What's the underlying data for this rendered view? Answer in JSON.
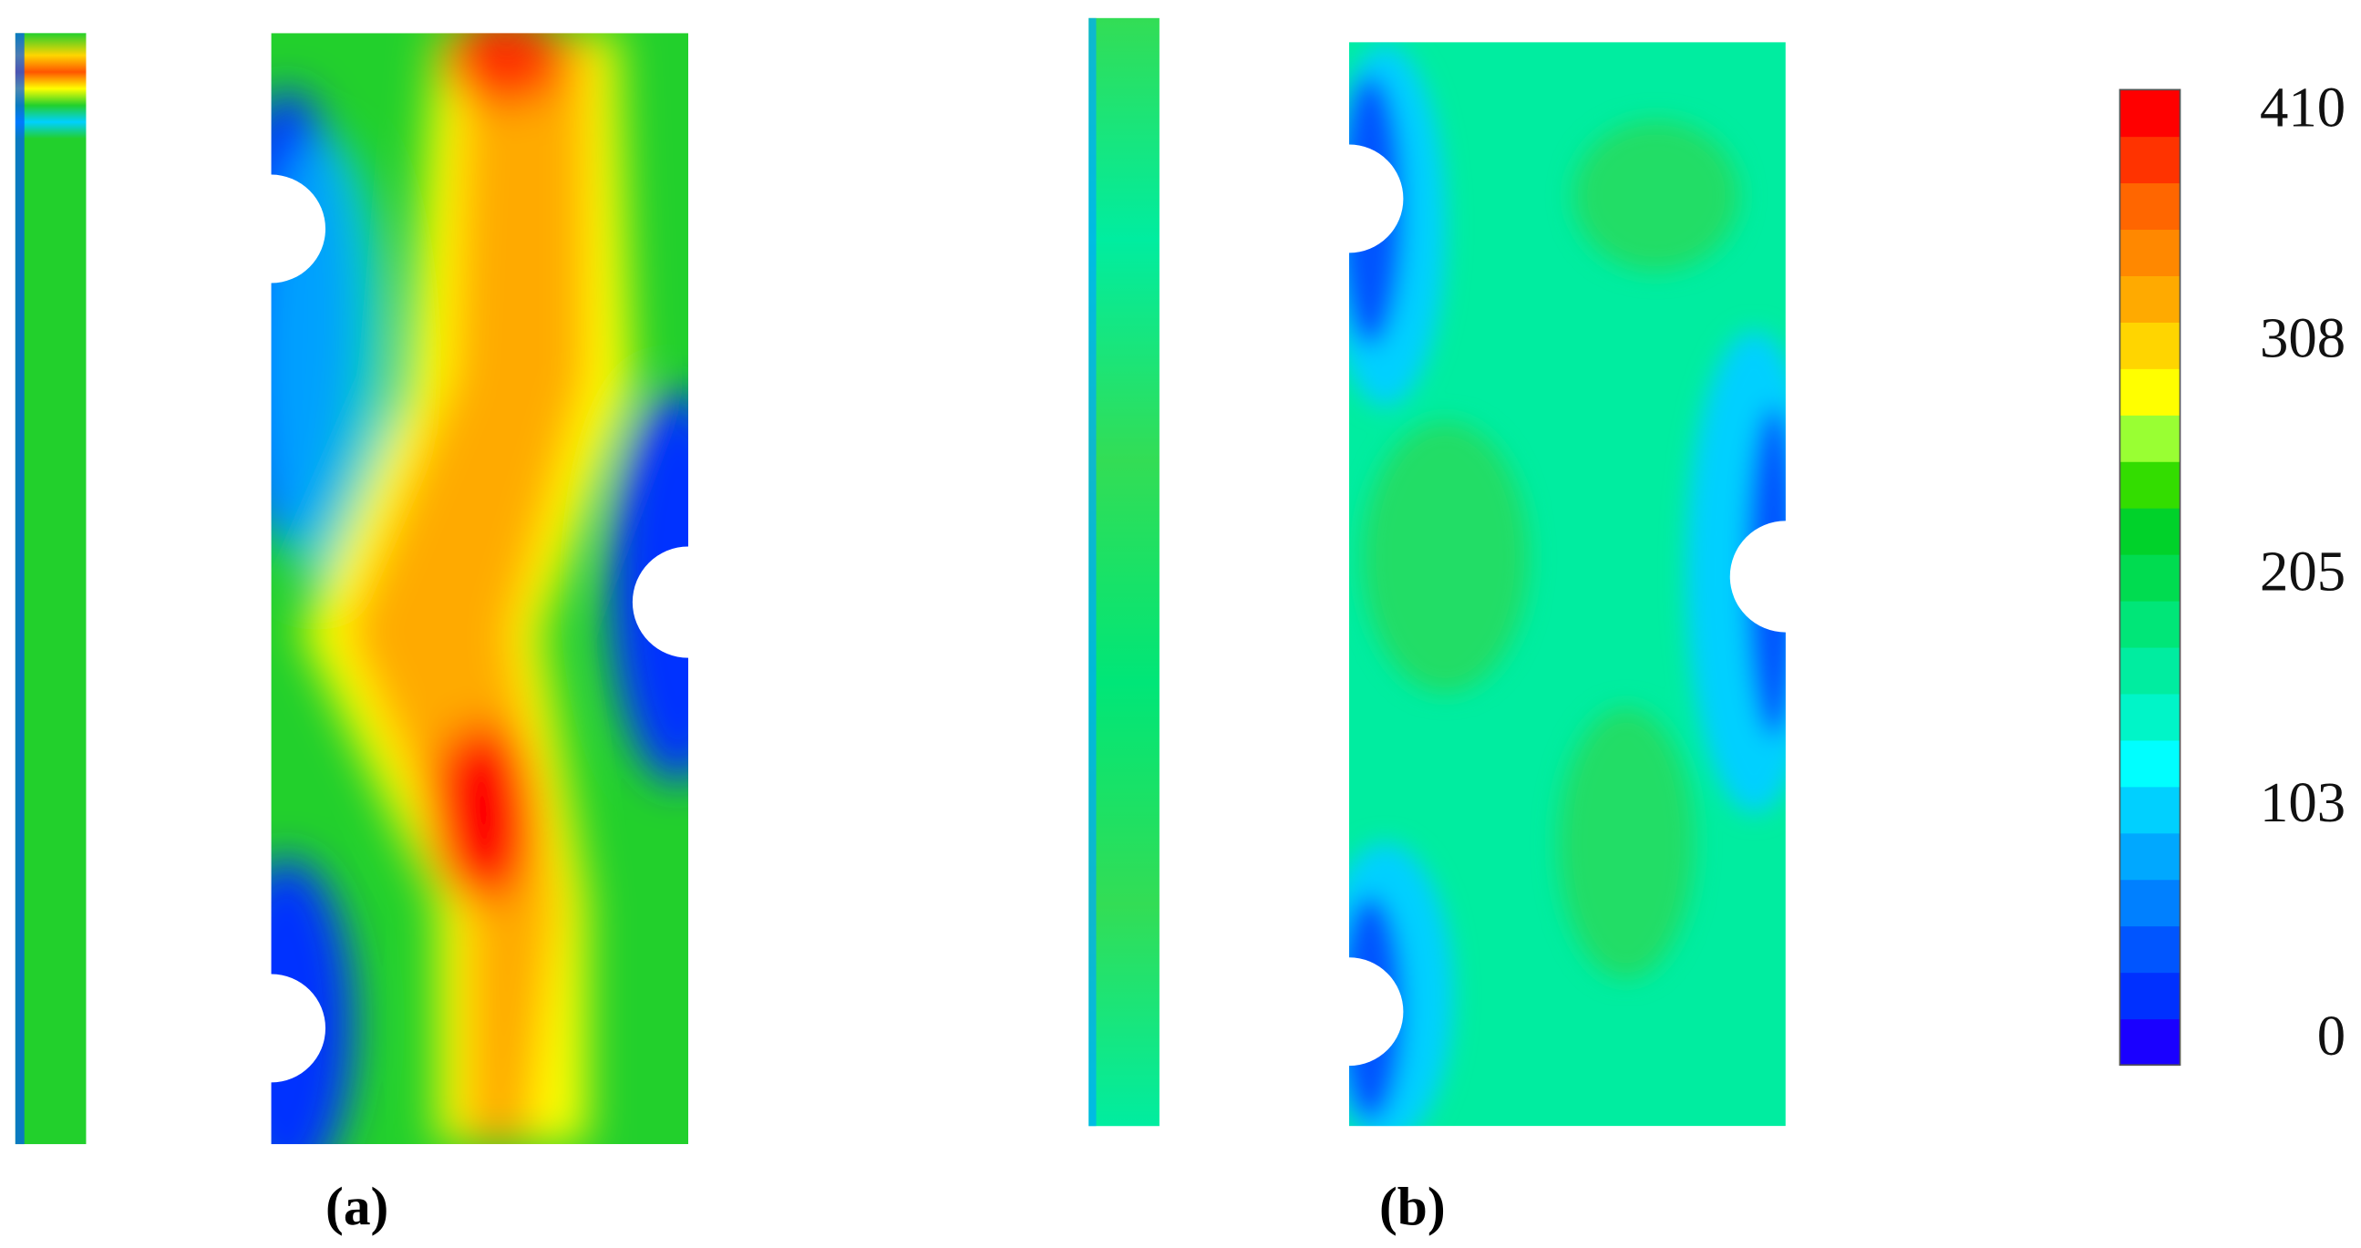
{
  "chart_data": {
    "type": "contour",
    "panels": [
      "(a)",
      "(b)"
    ],
    "ylim": [
      0,
      410
    ],
    "yticks": [
      0,
      103,
      205,
      308,
      410
    ],
    "colormap": [
      "#1a00ff",
      "#0030ff",
      "#0055ff",
      "#0080ff",
      "#00a8ff",
      "#00d0ff",
      "#00ffff",
      "#00f5c8",
      "#00eda0",
      "#00e678",
      "#00dc50",
      "#00d22a",
      "#33dd00",
      "#99ff33",
      "#ffff00",
      "#ffd500",
      "#ffaa00",
      "#ff8800",
      "#ff6600",
      "#ff3300",
      "#ff0000"
    ]
  }
}
